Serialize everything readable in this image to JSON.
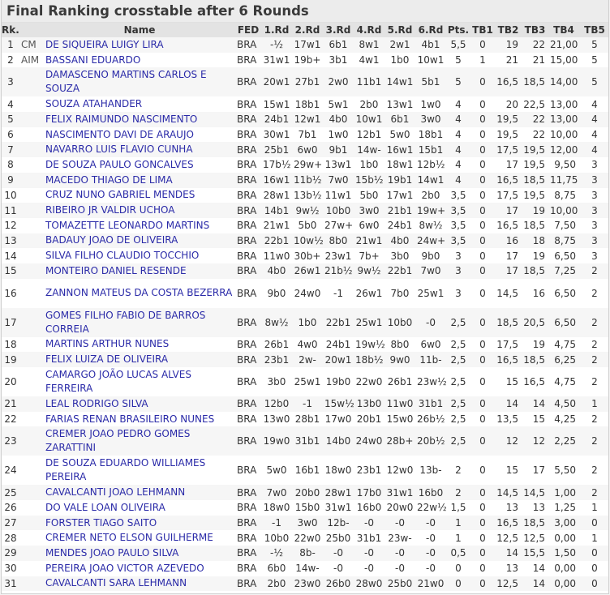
{
  "title": "Final Ranking crosstable after 6 Rounds",
  "headers": [
    "Rk.",
    "",
    "Name",
    "FED",
    "1.Rd",
    "2.Rd",
    "3.Rd",
    "4.Rd",
    "5.Rd",
    "6.Rd",
    "Pts.",
    "TB1",
    "TB2",
    "TB3",
    "TB4",
    "TB5"
  ],
  "rows": [
    {
      "rk": "1",
      "t": "CM",
      "name": "DE SIQUEIRA LUIGY LIRA",
      "fed": "BRA",
      "r": [
        "-½",
        "17w1",
        "6b1",
        "8w1",
        "2w1",
        "4b1"
      ],
      "pts": "5,5",
      "tb1": "0",
      "tb2": "19",
      "tb3": "22",
      "tb4": "21,00",
      "tb5": "5"
    },
    {
      "rk": "2",
      "t": "AIM",
      "name": "BASSANI EDUARDO",
      "fed": "BRA",
      "r": [
        "31w1",
        "19b+",
        "3b1",
        "4w1",
        "1b0",
        "10w1"
      ],
      "pts": "5",
      "tb1": "1",
      "tb2": "21",
      "tb3": "21",
      "tb4": "15,00",
      "tb5": "5"
    },
    {
      "rk": "3",
      "t": "",
      "name": "DAMASCENO MARTINS CARLOS E SOUZA",
      "fed": "BRA",
      "r": [
        "20w1",
        "27b1",
        "2w0",
        "11b1",
        "14w1",
        "5b1"
      ],
      "pts": "5",
      "tb1": "0",
      "tb2": "16,5",
      "tb3": "18,5",
      "tb4": "14,00",
      "tb5": "5",
      "tall": true
    },
    {
      "rk": "4",
      "t": "",
      "name": "SOUZA ATAHANDER",
      "fed": "BRA",
      "r": [
        "15w1",
        "18b1",
        "5w1",
        "2b0",
        "13w1",
        "1w0"
      ],
      "pts": "4",
      "tb1": "0",
      "tb2": "20",
      "tb3": "22,5",
      "tb4": "13,00",
      "tb5": "4"
    },
    {
      "rk": "5",
      "t": "",
      "name": "FELIX RAIMUNDO NASCIMENTO",
      "fed": "BRA",
      "r": [
        "24b1",
        "12w1",
        "4b0",
        "10w1",
        "6b1",
        "3w0"
      ],
      "pts": "4",
      "tb1": "0",
      "tb2": "19,5",
      "tb3": "22",
      "tb4": "13,00",
      "tb5": "4"
    },
    {
      "rk": "6",
      "t": "",
      "name": "NASCIMENTO DAVI DE ARAUJO",
      "fed": "BRA",
      "r": [
        "30w1",
        "7b1",
        "1w0",
        "12b1",
        "5w0",
        "18b1"
      ],
      "pts": "4",
      "tb1": "0",
      "tb2": "19,5",
      "tb3": "22",
      "tb4": "10,00",
      "tb5": "4"
    },
    {
      "rk": "7",
      "t": "",
      "name": "NAVARRO LUIS FLAVIO CUNHA",
      "fed": "BRA",
      "r": [
        "25b1",
        "6w0",
        "9b1",
        "14w-",
        "16w1",
        "15b1"
      ],
      "pts": "4",
      "tb1": "0",
      "tb2": "17,5",
      "tb3": "19,5",
      "tb4": "12,00",
      "tb5": "4"
    },
    {
      "rk": "8",
      "t": "",
      "name": "DE SOUZA PAULO GONCALVES",
      "fed": "BRA",
      "r": [
        "17b½",
        "29w+",
        "13w1",
        "1b0",
        "18w1",
        "12b½"
      ],
      "pts": "4",
      "tb1": "0",
      "tb2": "17",
      "tb3": "19,5",
      "tb4": "9,50",
      "tb5": "3"
    },
    {
      "rk": "9",
      "t": "",
      "name": "MACEDO THIAGO DE LIMA",
      "fed": "BRA",
      "r": [
        "16w1",
        "11b½",
        "7w0",
        "15b½",
        "19b1",
        "14w1"
      ],
      "pts": "4",
      "tb1": "0",
      "tb2": "16,5",
      "tb3": "18,5",
      "tb4": "11,75",
      "tb5": "3"
    },
    {
      "rk": "10",
      "t": "",
      "name": "CRUZ NUNO GABRIEL MENDES",
      "fed": "BRA",
      "r": [
        "28w1",
        "13b½",
        "11w1",
        "5b0",
        "17w1",
        "2b0"
      ],
      "pts": "3,5",
      "tb1": "0",
      "tb2": "17,5",
      "tb3": "19,5",
      "tb4": "8,75",
      "tb5": "3"
    },
    {
      "rk": "11",
      "t": "",
      "name": "RIBEIRO JR VALDIR UCHOA",
      "fed": "BRA",
      "r": [
        "14b1",
        "9w½",
        "10b0",
        "3w0",
        "21b1",
        "19w+"
      ],
      "pts": "3,5",
      "tb1": "0",
      "tb2": "17",
      "tb3": "19",
      "tb4": "10,00",
      "tb5": "3"
    },
    {
      "rk": "12",
      "t": "",
      "name": "TOMAZETTE LEONARDO MARTINS",
      "fed": "BRA",
      "r": [
        "21w1",
        "5b0",
        "27w+",
        "6w0",
        "24b1",
        "8w½"
      ],
      "pts": "3,5",
      "tb1": "0",
      "tb2": "16,5",
      "tb3": "18,5",
      "tb4": "7,50",
      "tb5": "3"
    },
    {
      "rk": "13",
      "t": "",
      "name": "BADAUY JOAO DE OLIVEIRA",
      "fed": "BRA",
      "r": [
        "22b1",
        "10w½",
        "8b0",
        "21w1",
        "4b0",
        "24w+"
      ],
      "pts": "3,5",
      "tb1": "0",
      "tb2": "16",
      "tb3": "18",
      "tb4": "8,75",
      "tb5": "3"
    },
    {
      "rk": "14",
      "t": "",
      "name": "SILVA FILHO CLAUDIO TOCCHIO",
      "fed": "BRA",
      "r": [
        "11w0",
        "30b+",
        "23w1",
        "7b+",
        "3b0",
        "9b0"
      ],
      "pts": "3",
      "tb1": "0",
      "tb2": "17",
      "tb3": "19",
      "tb4": "6,50",
      "tb5": "3"
    },
    {
      "rk": "15",
      "t": "",
      "name": "MONTEIRO DANIEL RESENDE",
      "fed": "BRA",
      "r": [
        "4b0",
        "26w1",
        "21b½",
        "9w½",
        "22b1",
        "7w0"
      ],
      "pts": "3",
      "tb1": "0",
      "tb2": "17",
      "tb3": "18,5",
      "tb4": "7,25",
      "tb5": "2"
    },
    {
      "rk": "16",
      "t": "",
      "name": "ZANNON MATEUS DA COSTA BEZERRA",
      "fed": "BRA",
      "r": [
        "9b0",
        "24w0",
        "-1",
        "26w1",
        "7b0",
        "25w1"
      ],
      "pts": "3",
      "tb1": "0",
      "tb2": "14,5",
      "tb3": "16",
      "tb4": "6,50",
      "tb5": "2",
      "tall": true
    },
    {
      "rk": "17",
      "t": "",
      "name": "GOMES FILHO FABIO DE BARROS CORREIA",
      "fed": "BRA",
      "r": [
        "8w½",
        "1b0",
        "22b1",
        "25w1",
        "10b0",
        "-0"
      ],
      "pts": "2,5",
      "tb1": "0",
      "tb2": "18,5",
      "tb3": "20,5",
      "tb4": "6,50",
      "tb5": "2",
      "tall": true
    },
    {
      "rk": "18",
      "t": "",
      "name": "MARTINS ARTHUR NUNES",
      "fed": "BRA",
      "r": [
        "26b1",
        "4w0",
        "24b1",
        "19w½",
        "8b0",
        "6w0"
      ],
      "pts": "2,5",
      "tb1": "0",
      "tb2": "17,5",
      "tb3": "19",
      "tb4": "4,75",
      "tb5": "2"
    },
    {
      "rk": "19",
      "t": "",
      "name": "FELIX LUIZA DE OLIVEIRA",
      "fed": "BRA",
      "r": [
        "23b1",
        "2w-",
        "20w1",
        "18b½",
        "9w0",
        "11b-"
      ],
      "pts": "2,5",
      "tb1": "0",
      "tb2": "16,5",
      "tb3": "18,5",
      "tb4": "6,25",
      "tb5": "2"
    },
    {
      "rk": "20",
      "t": "",
      "name": "CAMARGO JOÃO LUCAS ALVES FERREIRA",
      "fed": "BRA",
      "r": [
        "3b0",
        "25w1",
        "19b0",
        "22w0",
        "26b1",
        "23w½"
      ],
      "pts": "2,5",
      "tb1": "0",
      "tb2": "15",
      "tb3": "16,5",
      "tb4": "4,75",
      "tb5": "2",
      "tall": true
    },
    {
      "rk": "21",
      "t": "",
      "name": "LEAL RODRIGO SILVA",
      "fed": "BRA",
      "r": [
        "12b0",
        "-1",
        "15w½",
        "13b0",
        "11w0",
        "31b1"
      ],
      "pts": "2,5",
      "tb1": "0",
      "tb2": "14",
      "tb3": "14",
      "tb4": "4,50",
      "tb5": "1"
    },
    {
      "rk": "22",
      "t": "",
      "name": "FARIAS RENAN BRASILEIRO NUNES",
      "fed": "BRA",
      "r": [
        "13w0",
        "28b1",
        "17w0",
        "20b1",
        "15w0",
        "26b½"
      ],
      "pts": "2,5",
      "tb1": "0",
      "tb2": "13,5",
      "tb3": "15",
      "tb4": "4,25",
      "tb5": "2"
    },
    {
      "rk": "23",
      "t": "",
      "name": "CREMER JOAO PEDRO GOMES ZARATTINI",
      "fed": "BRA",
      "r": [
        "19w0",
        "31b1",
        "14b0",
        "24w0",
        "28b+",
        "20b½"
      ],
      "pts": "2,5",
      "tb1": "0",
      "tb2": "12",
      "tb3": "12",
      "tb4": "2,25",
      "tb5": "2",
      "tall": true
    },
    {
      "rk": "24",
      "t": "",
      "name": "DE SOUZA EDUARDO WILLIAMES PEREIRA",
      "fed": "BRA",
      "r": [
        "5w0",
        "16b1",
        "18w0",
        "23b1",
        "12w0",
        "13b-"
      ],
      "pts": "2",
      "tb1": "0",
      "tb2": "15",
      "tb3": "17",
      "tb4": "5,50",
      "tb5": "2",
      "tall": true
    },
    {
      "rk": "25",
      "t": "",
      "name": "CAVALCANTI JOAO LEHMANN",
      "fed": "BRA",
      "r": [
        "7w0",
        "20b0",
        "28w1",
        "17b0",
        "31w1",
        "16b0"
      ],
      "pts": "2",
      "tb1": "0",
      "tb2": "14,5",
      "tb3": "14,5",
      "tb4": "1,00",
      "tb5": "2"
    },
    {
      "rk": "26",
      "t": "",
      "name": "DO VALE LOAN OLIVEIRA",
      "fed": "BRA",
      "r": [
        "18w0",
        "15b0",
        "31w1",
        "16b0",
        "20w0",
        "22w½"
      ],
      "pts": "1,5",
      "tb1": "0",
      "tb2": "13",
      "tb3": "13",
      "tb4": "1,25",
      "tb5": "1"
    },
    {
      "rk": "27",
      "t": "",
      "name": "FORSTER TIAGO SAITO",
      "fed": "BRA",
      "r": [
        "-1",
        "3w0",
        "12b-",
        "-0",
        "-0",
        "-0"
      ],
      "pts": "1",
      "tb1": "0",
      "tb2": "16,5",
      "tb3": "18,5",
      "tb4": "3,00",
      "tb5": "0"
    },
    {
      "rk": "28",
      "t": "",
      "name": "CREMER NETO ELSON GUILHERME",
      "fed": "BRA",
      "r": [
        "10b0",
        "22w0",
        "25b0",
        "31b1",
        "23w-",
        "-0"
      ],
      "pts": "1",
      "tb1": "0",
      "tb2": "12,5",
      "tb3": "12,5",
      "tb4": "0,00",
      "tb5": "1"
    },
    {
      "rk": "29",
      "t": "",
      "name": "MENDES JOAO PAULO SILVA",
      "fed": "BRA",
      "r": [
        "-½",
        "8b-",
        "-0",
        "-0",
        "-0",
        "-0"
      ],
      "pts": "0,5",
      "tb1": "0",
      "tb2": "14",
      "tb3": "15,5",
      "tb4": "1,50",
      "tb5": "0"
    },
    {
      "rk": "30",
      "t": "",
      "name": "PEREIRA JOAO VICTOR AZEVEDO",
      "fed": "BRA",
      "r": [
        "6b0",
        "14w-",
        "-0",
        "-0",
        "-0",
        "-0"
      ],
      "pts": "0",
      "tb1": "0",
      "tb2": "13",
      "tb3": "14",
      "tb4": "0,00",
      "tb5": "0"
    },
    {
      "rk": "31",
      "t": "",
      "name": "CAVALCANTI SARA LEHMANN",
      "fed": "BRA",
      "r": [
        "2b0",
        "23w0",
        "26b0",
        "28w0",
        "25b0",
        "21w0"
      ],
      "pts": "0",
      "tb1": "0",
      "tb2": "12,5",
      "tb3": "14",
      "tb4": "0,00",
      "tb5": "0"
    }
  ]
}
